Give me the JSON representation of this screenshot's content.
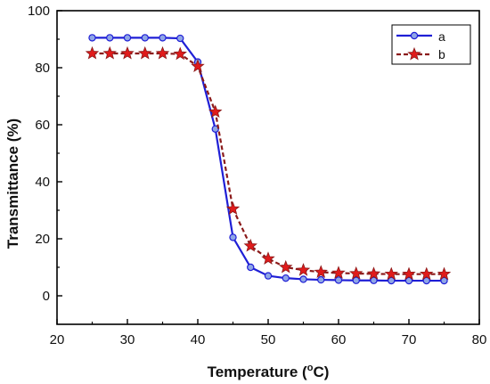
{
  "chart_data": {
    "type": "line",
    "title": "",
    "xlabel": "Temperature (",
    "xlabel_unit_sup": "o",
    "xlabel_unit": "C)",
    "ylabel": "Transmittance (%)",
    "xlim": [
      20,
      80
    ],
    "ylim": [
      -10,
      100
    ],
    "x_ticks": [
      20,
      30,
      40,
      50,
      60,
      70,
      80
    ],
    "y_ticks": [
      0,
      20,
      40,
      60,
      80,
      100
    ],
    "grid": false,
    "legend": "top-right",
    "series": [
      {
        "name": "a",
        "marker": "circle",
        "line_style": "solid",
        "color": "#1f1fd6",
        "marker_fill": "#8fa6e6",
        "x": [
          25,
          27.5,
          30,
          32.5,
          35,
          37.5,
          40,
          42.5,
          45,
          47.5,
          50,
          52.5,
          55,
          57.5,
          60,
          62.5,
          65,
          67.5,
          70,
          72.5,
          75
        ],
        "y": [
          90.5,
          90.5,
          90.5,
          90.5,
          90.5,
          90.3,
          82,
          58.5,
          20.5,
          10,
          7,
          6.2,
          5.8,
          5.6,
          5.5,
          5.4,
          5.4,
          5.3,
          5.3,
          5.3,
          5.3
        ]
      },
      {
        "name": "b",
        "marker": "star",
        "line_style": "dashed",
        "color": "#8b1a1a",
        "marker_fill": "#e01b1b",
        "x": [
          25,
          27.5,
          30,
          32.5,
          35,
          37.5,
          40,
          42.5,
          45,
          47.5,
          50,
          52.5,
          55,
          57.5,
          60,
          62.5,
          65,
          67.5,
          70,
          72.5,
          75
        ],
        "y": [
          85,
          85,
          85,
          85,
          85,
          84.8,
          80.5,
          64.5,
          30.5,
          17.5,
          13,
          10,
          9,
          8.3,
          8,
          7.8,
          7.7,
          7.6,
          7.6,
          7.6,
          7.6
        ]
      }
    ]
  }
}
